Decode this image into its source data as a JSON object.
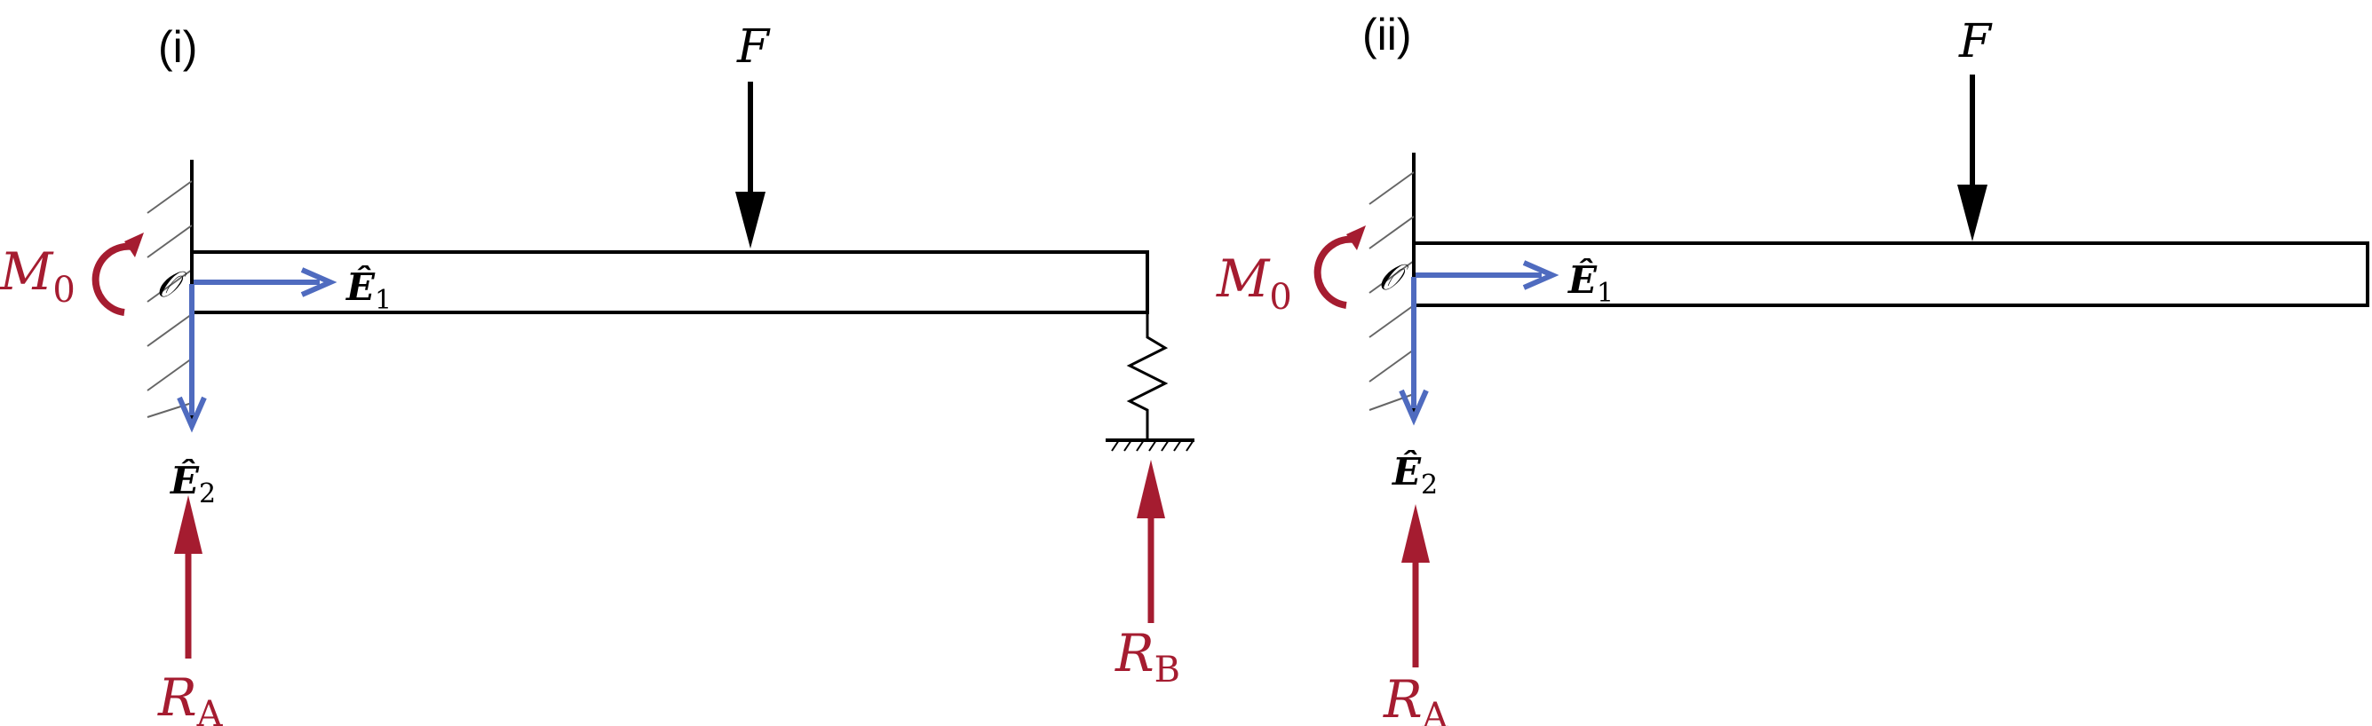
{
  "diagram": {
    "panels": [
      {
        "id": "i",
        "label": "(i)",
        "force_label": "F",
        "moment_label": "M",
        "moment_sub": "0",
        "origin_label": "𝒪",
        "e1_label": "Ê",
        "e1_sub": "1",
        "e2_label": "Ê",
        "e2_sub": "2",
        "reaction_a_label": "R",
        "reaction_a_sub": "A",
        "reaction_b_label": "R",
        "reaction_b_sub": "B"
      },
      {
        "id": "ii",
        "label": "(ii)",
        "force_label": "F",
        "moment_label": "M",
        "moment_sub": "0",
        "origin_label": "𝒪",
        "e1_label": "Ê",
        "e1_sub": "1",
        "e2_label": "Ê",
        "e2_sub": "2",
        "reaction_a_label": "R",
        "reaction_a_sub": "A"
      }
    ],
    "colors": {
      "reaction": "#a51c30",
      "basis": "#4f6bbf",
      "structure": "#000000"
    }
  }
}
